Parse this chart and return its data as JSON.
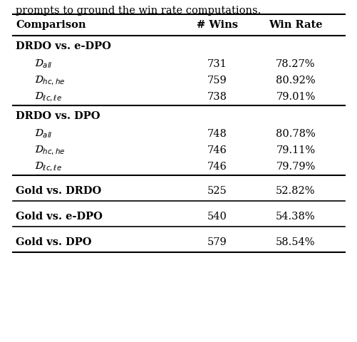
{
  "col_headers": [
    "Comparison",
    "# Wins",
    "Win Rate"
  ],
  "rows": [
    {
      "label": "DRDO vs. e-DPO",
      "bold": true,
      "indent": false,
      "wins": "",
      "rate": ""
    },
    {
      "label": "$\\mathcal{D}_{all}$",
      "bold": false,
      "indent": true,
      "wins": "731",
      "rate": "78.27%"
    },
    {
      "label": "$\\mathcal{D}_{hc,he}$",
      "bold": false,
      "indent": true,
      "wins": "759",
      "rate": "80.92%"
    },
    {
      "label": "$\\mathcal{D}_{\\ell c,\\ell e}$",
      "bold": false,
      "indent": true,
      "wins": "738",
      "rate": "79.01%"
    },
    {
      "label": "DRDO vs. DPO",
      "bold": true,
      "indent": false,
      "wins": "",
      "rate": ""
    },
    {
      "label": "$\\mathcal{D}_{all}$",
      "bold": false,
      "indent": true,
      "wins": "748",
      "rate": "80.78%"
    },
    {
      "label": "$\\mathcal{D}_{hc,he}$",
      "bold": false,
      "indent": true,
      "wins": "746",
      "rate": "79.11%"
    },
    {
      "label": "$\\mathcal{D}_{\\ell c,\\ell e}$",
      "bold": false,
      "indent": true,
      "wins": "746",
      "rate": "79.79%"
    },
    {
      "label": "Gold vs. DRDO",
      "bold": true,
      "indent": false,
      "wins": "525",
      "rate": "52.82%"
    },
    {
      "label": "Gold vs. e-DPO",
      "bold": true,
      "indent": false,
      "wins": "540",
      "rate": "54.38%"
    },
    {
      "label": "Gold vs. DPO",
      "bold": true,
      "indent": false,
      "wins": "579",
      "rate": "58.54%"
    }
  ],
  "top_text": "prompts to ground the win rate computations.",
  "background_color": "#ffffff",
  "font_size": 10.5,
  "header_font_size": 10.5
}
